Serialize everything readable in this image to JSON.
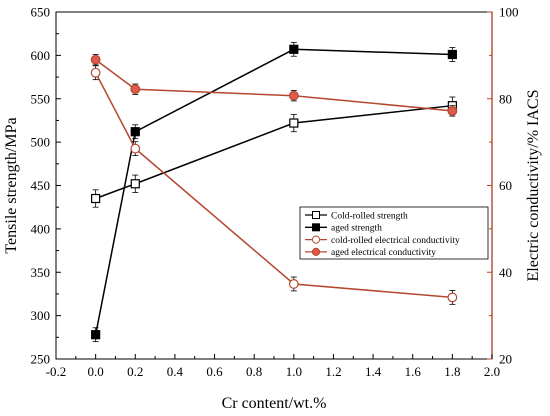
{
  "chart_data": {
    "type": "line",
    "xlabel": "Cr content/wt.%",
    "ylabel_left": "Tensile strength/MPa",
    "ylabel_right": "Electric conductivity/% IACS",
    "xlim": [
      -0.2,
      2.0
    ],
    "ylim_left": [
      250,
      650
    ],
    "ylim_right": [
      20,
      100
    ],
    "x_ticks": [
      "-0.2",
      "0.0",
      "0.2",
      "0.4",
      "0.6",
      "0.8",
      "1.0",
      "1.2",
      "1.4",
      "1.6",
      "1.8",
      "2.0"
    ],
    "y_ticks_left": [
      "250",
      "300",
      "350",
      "400",
      "450",
      "500",
      "550",
      "600",
      "650"
    ],
    "y_ticks_right": [
      "20",
      "40",
      "60",
      "80",
      "100"
    ],
    "grid": false,
    "legend_position": "center-right",
    "series": [
      {
        "name": "Cold-rolled strength",
        "axis": "left",
        "color": "#000000",
        "marker": "square-open",
        "x": [
          0.0,
          0.2,
          1.0,
          1.8
        ],
        "y": [
          435,
          452,
          522,
          542
        ],
        "error": [
          10,
          10,
          10,
          10
        ]
      },
      {
        "name": "aged strength",
        "axis": "left",
        "color": "#000000",
        "marker": "square-filled",
        "x": [
          0.0,
          0.2,
          1.0,
          1.8
        ],
        "y": [
          278,
          512,
          607,
          601
        ],
        "error": [
          8,
          8,
          8,
          8
        ]
      },
      {
        "name": "cold-rolled electrical conductivity",
        "axis": "right",
        "color": "#b5472e",
        "marker": "circle-open",
        "x": [
          0.0,
          0.2,
          1.0,
          1.8
        ],
        "y": [
          86,
          68.5,
          37.3,
          34.2
        ],
        "error": [
          1.6,
          1.6,
          1.6,
          1.6
        ]
      },
      {
        "name": "aged electrical conductivity",
        "axis": "right",
        "color": "#b5472e",
        "marker": "circle-filled",
        "x": [
          0.0,
          0.2,
          1.0,
          1.8
        ],
        "y": [
          89,
          82.2,
          80.7,
          77.2
        ],
        "error": [
          1.2,
          1.2,
          1.2,
          1.2
        ]
      }
    ]
  }
}
